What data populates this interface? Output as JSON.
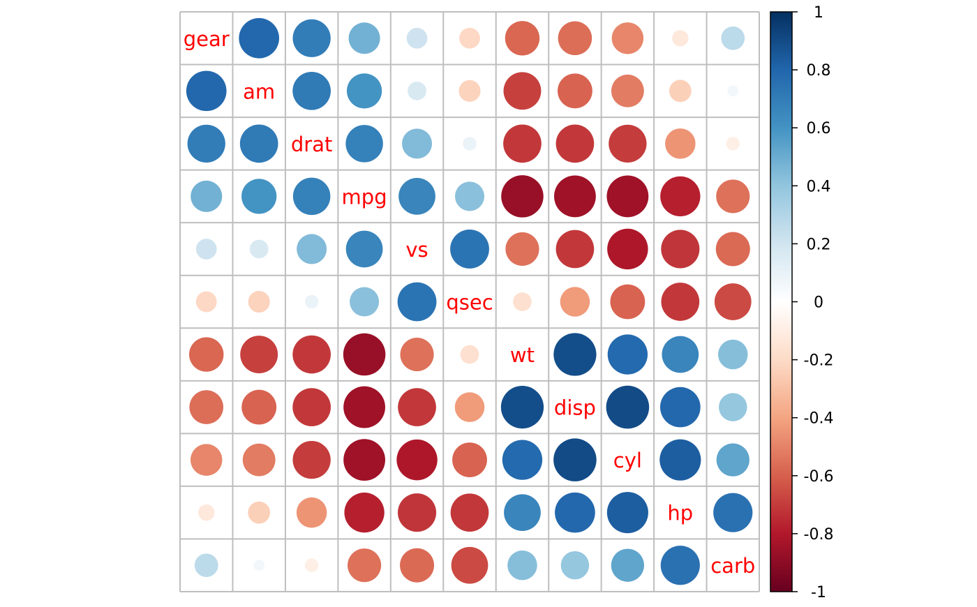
{
  "chart_data": {
    "type": "heatmap",
    "subtype": "correlation-circles",
    "variables": [
      "gear",
      "am",
      "drat",
      "mpg",
      "vs",
      "qsec",
      "wt",
      "disp",
      "cyl",
      "hp",
      "carb"
    ],
    "matrix": [
      [
        1,
        0.79,
        0.7,
        0.48,
        0.21,
        -0.21,
        -0.58,
        -0.56,
        -0.49,
        -0.13,
        0.27
      ],
      [
        0.79,
        1,
        0.71,
        0.6,
        0.17,
        -0.23,
        -0.69,
        -0.59,
        -0.52,
        -0.24,
        0.06
      ],
      [
        0.7,
        0.71,
        1,
        0.68,
        0.44,
        0.09,
        -0.71,
        -0.71,
        -0.7,
        -0.45,
        -0.09
      ],
      [
        0.48,
        0.6,
        0.68,
        1,
        0.66,
        0.42,
        -0.87,
        -0.85,
        -0.85,
        -0.78,
        -0.55
      ],
      [
        0.21,
        0.17,
        0.44,
        0.66,
        1,
        0.74,
        -0.55,
        -0.71,
        -0.81,
        -0.72,
        -0.57
      ],
      [
        -0.21,
        -0.23,
        0.09,
        0.42,
        0.74,
        1,
        -0.17,
        -0.43,
        -0.59,
        -0.71,
        -0.66
      ],
      [
        -0.58,
        -0.69,
        -0.71,
        -0.87,
        -0.55,
        -0.17,
        1,
        0.89,
        0.78,
        0.66,
        0.43
      ],
      [
        -0.56,
        -0.59,
        -0.71,
        -0.85,
        -0.71,
        -0.43,
        0.89,
        1,
        0.9,
        0.79,
        0.39
      ],
      [
        -0.49,
        -0.52,
        -0.7,
        -0.85,
        -0.81,
        -0.59,
        0.78,
        0.9,
        1,
        0.83,
        0.53
      ],
      [
        -0.13,
        -0.24,
        -0.45,
        -0.78,
        -0.72,
        -0.71,
        0.66,
        0.79,
        0.83,
        1,
        0.75
      ],
      [
        0.27,
        0.06,
        -0.09,
        -0.55,
        -0.57,
        -0.66,
        0.43,
        0.39,
        0.53,
        0.75,
        1
      ]
    ],
    "legend": {
      "placement": "right",
      "range": [
        -1,
        1
      ],
      "ticks": [
        "1",
        "0.8",
        "0.6",
        "0.4",
        "0.2",
        "0",
        "-0.2",
        "-0.4",
        "-0.6",
        "-0.8",
        "-1"
      ]
    },
    "colors": {
      "label_color": "#ff0000",
      "grid_color": "#bebebe",
      "palette": [
        "#67001f",
        "#b2182b",
        "#d6604d",
        "#f4a582",
        "#fddbc7",
        "#ffffff",
        "#d1e5f0",
        "#92c5de",
        "#4393c3",
        "#2166ac",
        "#053061"
      ]
    }
  }
}
